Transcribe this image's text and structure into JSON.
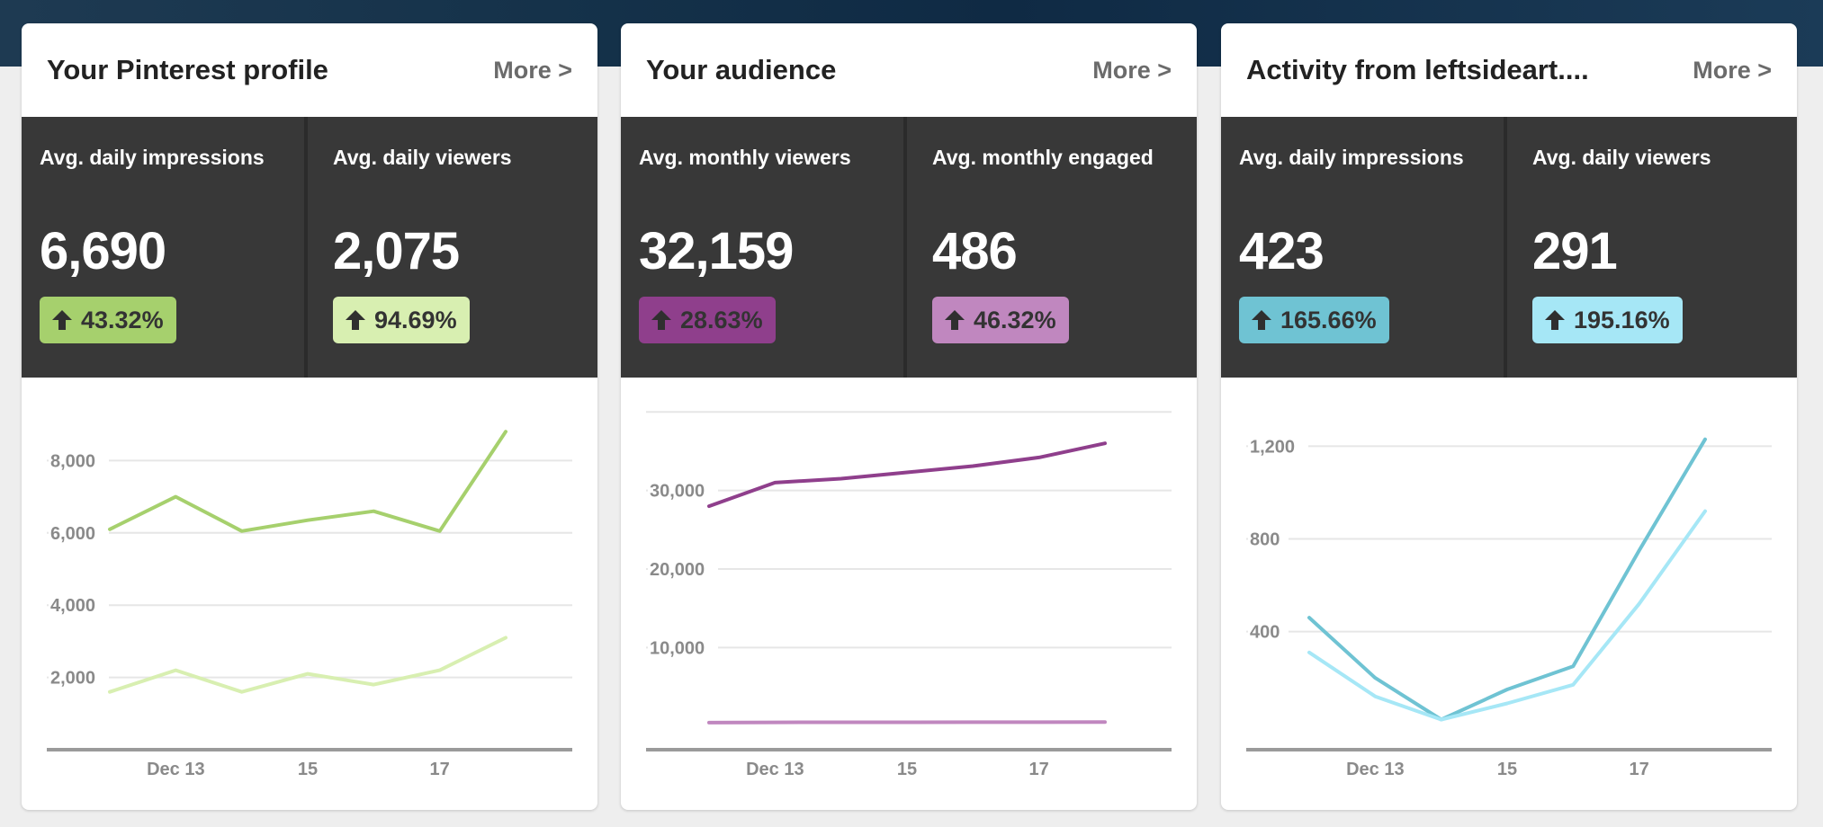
{
  "cards": [
    {
      "title": "Your Pinterest profile",
      "more": "More >",
      "stats": [
        {
          "label": "Avg. daily impressions",
          "value": "6,690",
          "change": "43.32%",
          "badge_color": "#a6d06d"
        },
        {
          "label": "Avg. daily viewers",
          "value": "2,075",
          "change": "94.69%",
          "badge_color": "#d8efb1"
        }
      ],
      "chart_data": {
        "type": "line",
        "x": [
          "Dec 12",
          "Dec 13",
          "Dec 14",
          "Dec 15",
          "Dec 16",
          "Dec 17",
          "Dec 18"
        ],
        "series": [
          {
            "color": "#a6d06d",
            "values": [
              6100,
              7000,
              6050,
              6350,
              6600,
              6050,
              8800
            ]
          },
          {
            "color": "#d8efb1",
            "values": [
              1600,
              2200,
              1600,
              2100,
              1800,
              2200,
              3100
            ]
          }
        ],
        "ylim": [
          0,
          10000
        ],
        "yticks": [
          {
            "value": 2000,
            "label": "2,000"
          },
          {
            "value": 4000,
            "label": "4,000"
          },
          {
            "value": 6000,
            "label": "6,000"
          },
          {
            "value": 8000,
            "label": "8,000"
          }
        ],
        "xticks": [
          {
            "index": 1,
            "label": "Dec 13"
          },
          {
            "index": 3,
            "label": "15"
          },
          {
            "index": 5,
            "label": "17"
          }
        ],
        "grid": true
      }
    },
    {
      "title": "Your audience",
      "more": "More >",
      "stats": [
        {
          "label": "Avg. monthly viewers",
          "value": "32,159",
          "change": "28.63%",
          "badge_color": "#8f3f8c"
        },
        {
          "label": "Avg. monthly engaged",
          "value": "486",
          "change": "46.32%",
          "badge_color": "#c087bf"
        }
      ],
      "chart_data": {
        "type": "line",
        "x": [
          "Dec 12",
          "Dec 13",
          "Dec 14",
          "Dec 15",
          "Dec 16",
          "Dec 17",
          "Dec 18"
        ],
        "series": [
          {
            "color": "#8f3f8c",
            "values": [
              28000,
              31000,
              31500,
              32300,
              33100,
              34200,
              36000
            ]
          },
          {
            "color": "#c087bf",
            "values": [
              450,
              480,
              490,
              490,
              500,
              500,
              510
            ]
          }
        ],
        "ylim": [
          -3000,
          43000
        ],
        "yticks": [
          {
            "value": 10000,
            "label": "10,000"
          },
          {
            "value": 20000,
            "label": "20,000"
          },
          {
            "value": 30000,
            "label": "30,000"
          },
          {
            "value": 40000,
            "label": ""
          }
        ],
        "xticks": [
          {
            "index": 1,
            "label": "Dec 13"
          },
          {
            "index": 3,
            "label": "15"
          },
          {
            "index": 5,
            "label": "17"
          }
        ],
        "grid": true
      }
    },
    {
      "title": "Activity from leftsideart....",
      "more": "More >",
      "stats": [
        {
          "label": "Avg. daily impressions",
          "value": "423",
          "change": "165.66%",
          "badge_color": "#6fc3d3"
        },
        {
          "label": "Avg. daily viewers",
          "value": "291",
          "change": "195.16%",
          "badge_color": "#a6e7f6"
        }
      ],
      "chart_data": {
        "type": "line",
        "x": [
          "Dec 12",
          "Dec 13",
          "Dec 14",
          "Dec 15",
          "Dec 16",
          "Dec 17",
          "Dec 18"
        ],
        "series": [
          {
            "color": "#6fc3d3",
            "values": [
              460,
              200,
              20,
              150,
              250,
              750,
              1230
            ]
          },
          {
            "color": "#a6e7f6",
            "values": [
              310,
              120,
              20,
              90,
              170,
              520,
              920
            ]
          }
        ],
        "ylim": [
          -110,
          1450
        ],
        "yticks": [
          {
            "value": 400,
            "label": "400"
          },
          {
            "value": 800,
            "label": "800"
          },
          {
            "value": 1200,
            "label": "1,200"
          }
        ],
        "xticks": [
          {
            "index": 1,
            "label": "Dec 13"
          },
          {
            "index": 3,
            "label": "15"
          },
          {
            "index": 5,
            "label": "17"
          }
        ],
        "grid": true
      }
    }
  ]
}
